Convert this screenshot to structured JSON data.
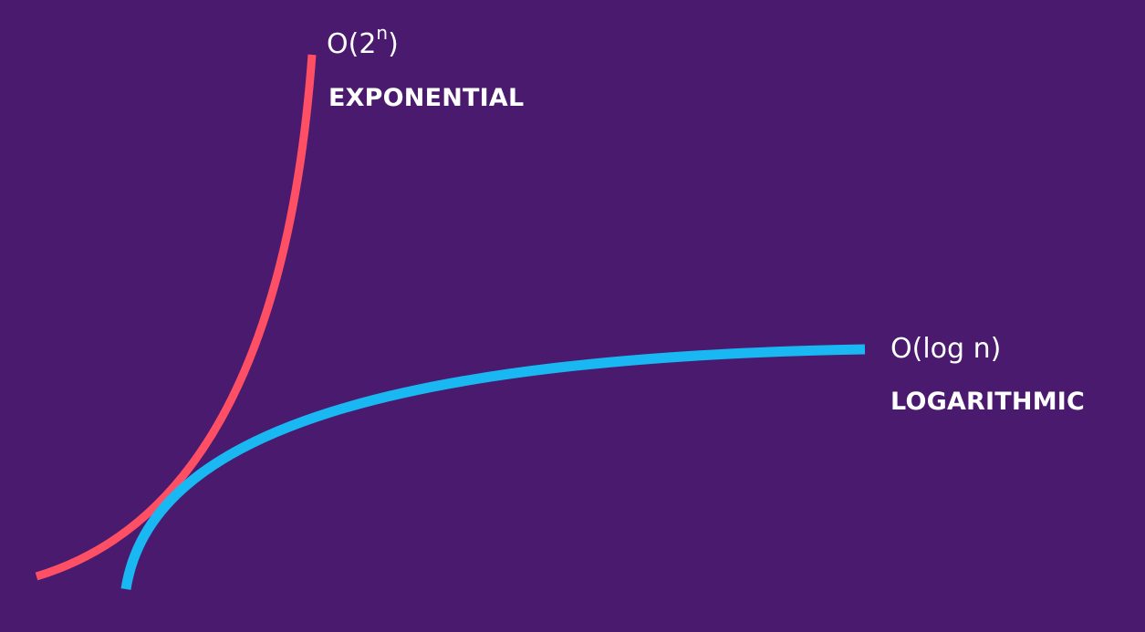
{
  "colors": {
    "background": "#4a1a6e",
    "exponential": "#ff4f64",
    "logarithmic": "#19b8f2",
    "text": "#ffffff"
  },
  "curves": {
    "exponential": {
      "notation_prefix": "O(2",
      "notation_exponent": "n",
      "notation_suffix": ")",
      "name": "EXPONENTIAL"
    },
    "logarithmic": {
      "notation": "O(log n)",
      "name": "LOGARITHMIC"
    }
  }
}
